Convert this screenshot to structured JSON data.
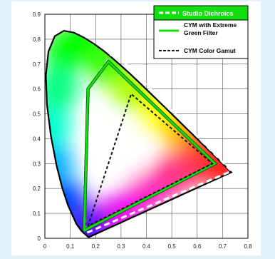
{
  "chart_data": {
    "type": "line",
    "title": "",
    "xlabel": "",
    "ylabel": "",
    "xlim": [
      0,
      0.8
    ],
    "ylim": [
      0,
      0.9
    ],
    "x_ticks": [
      "0",
      "0.1",
      "0.2",
      "0.3",
      "0.4",
      "0.5",
      "0.6",
      "0.7",
      "0.8"
    ],
    "y_ticks": [
      "0",
      "0.1",
      "0.2",
      "0.3",
      "0.4",
      "0.5",
      "0.6",
      "0.7",
      "0.8",
      "0.9"
    ],
    "grid": true,
    "legend_position": "top-right",
    "spectral_locus": {
      "x": [
        0.1741,
        0.1738,
        0.1733,
        0.1726,
        0.1714,
        0.1689,
        0.1644,
        0.1566,
        0.144,
        0.1241,
        0.0913,
        0.0687,
        0.0454,
        0.0235,
        0.0082,
        0.0039,
        0.0139,
        0.0389,
        0.0743,
        0.1142,
        0.1547,
        0.1929,
        0.2296,
        0.2658,
        0.3016,
        0.3373,
        0.3731,
        0.4087,
        0.4441,
        0.4788,
        0.5125,
        0.5448,
        0.5752,
        0.6029,
        0.627,
        0.6482,
        0.6658,
        0.6801,
        0.6915,
        0.7006,
        0.7079,
        0.714,
        0.719,
        0.723,
        0.726,
        0.7347
      ],
      "y": [
        0.005,
        0.0049,
        0.0048,
        0.0048,
        0.0051,
        0.0069,
        0.0109,
        0.0177,
        0.0297,
        0.0578,
        0.1327,
        0.2007,
        0.295,
        0.4127,
        0.5384,
        0.6548,
        0.7502,
        0.812,
        0.8338,
        0.8262,
        0.8059,
        0.7816,
        0.7543,
        0.7243,
        0.6923,
        0.6589,
        0.6245,
        0.5896,
        0.5547,
        0.5202,
        0.4866,
        0.4544,
        0.4242,
        0.3965,
        0.3725,
        0.3514,
        0.334,
        0.3197,
        0.3083,
        0.2993,
        0.292,
        0.2859,
        0.2809,
        0.277,
        0.274,
        0.2653
      ]
    },
    "series": [
      {
        "name": "Studio Dichroics",
        "color": "#ffffff",
        "style": "dashed",
        "x": [
          0.15,
          0.17,
          0.27,
          0.735,
          0.16,
          0.15
        ],
        "y": [
          0.54,
          0.6,
          0.75,
          0.27,
          0.02,
          0.54
        ]
      },
      {
        "name": "CYM with Extreme Green Filter",
        "color": "#11dd11",
        "style": "solid",
        "x": [
          0.155,
          0.17,
          0.25,
          0.67,
          0.17,
          0.155
        ],
        "y": [
          0.03,
          0.6,
          0.71,
          0.3,
          0.04,
          0.03
        ]
      },
      {
        "name": "CYM Color Gamut",
        "color": "#111111",
        "style": "dashed",
        "x": [
          0.17,
          0.34,
          0.66,
          0.17
        ],
        "y": [
          0.05,
          0.58,
          0.3,
          0.05
        ]
      }
    ],
    "legend_colors": {
      "first_entry_background": "#11dd11",
      "first_entry_text": "#ffffff"
    }
  }
}
